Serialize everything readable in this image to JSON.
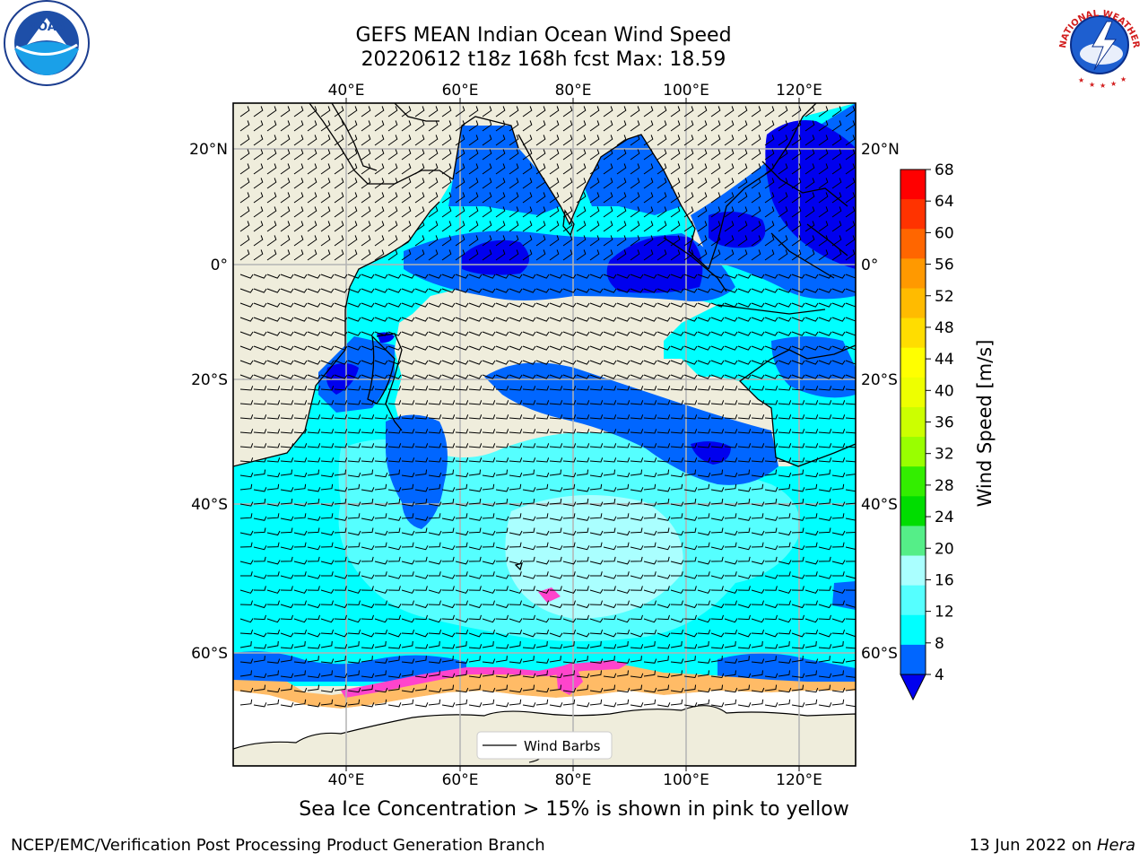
{
  "header": {
    "title_line1": "GEFS MEAN Indian Ocean Wind Speed",
    "title_line2": "20220612 t18z 168h fcst   Max: 18.59"
  },
  "map": {
    "top_lon_labels": [
      "40°E",
      "60°E",
      "80°E",
      "100°E",
      "120°E"
    ],
    "bottom_lon_labels": [
      "40°E",
      "60°E",
      "80°E",
      "100°E",
      "120°E"
    ],
    "left_lat_labels": [
      "20°N",
      "0°",
      "20°S",
      "40°S",
      "60°S"
    ],
    "right_lat_labels": [
      "20°N",
      "0°",
      "20°S",
      "40°S",
      "60°S"
    ],
    "legend_label": "Wind Barbs",
    "colors": {
      "land": "#efeddc",
      "ice_free_zone": "#ffffff",
      "grid": "#b3b3b3"
    }
  },
  "colorbar": {
    "label": "Wind Speed [m/s]",
    "ticks": [
      "68",
      "64",
      "60",
      "56",
      "52",
      "48",
      "44",
      "40",
      "36",
      "32",
      "28",
      "24",
      "20",
      "16",
      "12",
      "8",
      "4"
    ],
    "colors": [
      "#ff0000",
      "#ff3300",
      "#ff6600",
      "#ff9900",
      "#ffbb00",
      "#ffdd00",
      "#ffff00",
      "#eeff00",
      "#ccff00",
      "#99ff00",
      "#33ee00",
      "#00dd00",
      "#55ee88",
      "#aaffff",
      "#55ffff",
      "#00ffff",
      "#0066ff"
    ],
    "under_color": "#0000ee"
  },
  "caption": "Sea Ice Concentration > 15% is shown in pink to yellow",
  "footer": {
    "left": "NCEP/EMC/Verification Post Processing Product Generation Branch",
    "right_date": "13 Jun 2022 on ",
    "right_host": "Hera"
  },
  "logos": {
    "noaa_text": "NOAA",
    "nws_text": "NATIONAL WEATHER SERVICE"
  }
}
